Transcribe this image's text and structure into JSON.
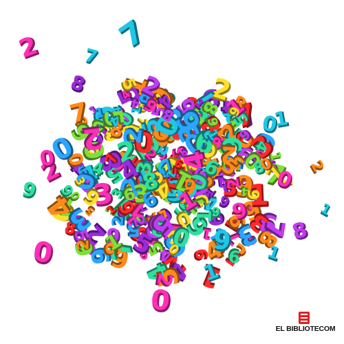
{
  "scene": {
    "background": "#ffffff",
    "palette": [
      "#ff2fb8",
      "#1fc7e6",
      "#9b2bd9",
      "#7ee03a",
      "#ff2a2a",
      "#ffe02a",
      "#ff8a1a",
      "#2aa6ff",
      "#2ee0a0",
      "#c23cf0"
    ]
  },
  "watermark": {
    "text": "EL BIBLIOTECOM",
    "color": "#111111",
    "accent": "#e32020",
    "icon": "book-logo-icon"
  }
}
